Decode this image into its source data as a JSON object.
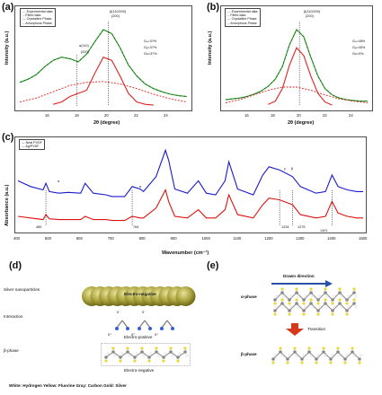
{
  "panels": {
    "a": {
      "label": "(a)",
      "ylabel": "Intensity (a.u.)",
      "xlabel": "2θ (degree)",
      "legend": [
        "Experimental data",
        "Fitted data",
        "Crystalline Phase",
        "Amorphous Phase"
      ],
      "peak_labels": [
        "β(110/200)",
        "α(110)",
        "(020)"
      ],
      "peak_top": "β(110/200)",
      "peak_sub": "(200)",
      "stats": [
        "Gₐ=3?%",
        "Gᵦ=3?%",
        "Gc=3?%"
      ],
      "xticks": [
        "16",
        "18",
        "20",
        "22",
        "24"
      ]
    },
    "b": {
      "label": "(b)",
      "ylabel": "Intensity (a.u.)",
      "xlabel": "2θ (degree)",
      "legend": [
        "Experimental data",
        "Fitted data",
        "Crystalline Phase",
        "Amorphous Phase"
      ],
      "peak_top": "β(110/200)",
      "peak_sub": "(200)",
      "stats": [
        "Gₐ=45%",
        "Gᵦ=45%",
        "Gc=0%"
      ],
      "xticks": [
        "16",
        "18",
        "20",
        "22",
        "24"
      ]
    },
    "c": {
      "label": "(c)",
      "ylabel": "Absorbance (a.u.)",
      "xlabel": "Wavenumber (cm⁻¹)",
      "legend": [
        "Neat PVDF",
        "Ag/PVDF"
      ],
      "xticks": [
        "400",
        "500",
        "600",
        "700",
        "800",
        "900",
        "1000",
        "1100",
        "1200",
        "1300",
        "1400",
        "1500"
      ],
      "annotations": [
        "α",
        "α",
        "γ",
        "β",
        "1401",
        "764",
        "1234",
        "1275",
        "489"
      ]
    },
    "d": {
      "label": "(d)",
      "row_labels": [
        "Silver nanoparticles",
        "Interaction",
        "β-phase"
      ],
      "np_label": "Electro-negative",
      "electro_positive": "Electro-positive",
      "electro_negative": "Electro-negative",
      "charges": [
        "δ⁻",
        "δ⁻",
        "δ⁺",
        "δ⁺",
        "δ⁺"
      ]
    },
    "e": {
      "label": "(e)",
      "drawn_direction": "Drawn direction",
      "alpha_phase": "α-phase",
      "transition": "Transition",
      "beta_phase": "β-phase"
    },
    "footer": "White: Hydrogen   Yellow: Fluorine   Gray: Carbon   Gold: Silver"
  },
  "chart_data": [
    {
      "type": "line",
      "panel": "a",
      "xlabel": "2θ (degree)",
      "ylabel": "Intensity (a.u.)",
      "xlim": [
        15,
        25
      ],
      "series": [
        {
          "name": "Experimental data",
          "color": "#22aa22",
          "x": [
            15.0,
            15.5,
            16.0,
            16.5,
            17.0,
            17.5,
            18.0,
            18.5,
            19.0,
            19.5,
            20.0,
            20.5,
            21.0,
            21.5,
            22.0,
            22.5,
            23.0,
            23.5,
            24.0,
            24.5,
            25.0
          ],
          "y": [
            0.3,
            0.34,
            0.4,
            0.5,
            0.58,
            0.62,
            0.6,
            0.56,
            0.66,
            0.82,
            0.97,
            0.92,
            0.74,
            0.52,
            0.38,
            0.28,
            0.22,
            0.18,
            0.15,
            0.13,
            0.12
          ]
        },
        {
          "name": "Fitted data",
          "color": "#226622",
          "x": [
            15.0,
            15.5,
            16.0,
            16.5,
            17.0,
            17.5,
            18.0,
            18.5,
            19.0,
            19.5,
            20.0,
            20.5,
            21.0,
            21.5,
            22.0,
            22.5,
            23.0,
            23.5,
            24.0,
            24.5,
            25.0
          ],
          "y": [
            0.3,
            0.34,
            0.4,
            0.5,
            0.58,
            0.62,
            0.6,
            0.56,
            0.66,
            0.82,
            0.97,
            0.92,
            0.74,
            0.52,
            0.38,
            0.28,
            0.22,
            0.18,
            0.15,
            0.13,
            0.12
          ]
        },
        {
          "name": "Crystalline Phase",
          "color": "#dd2222",
          "x": [
            17.0,
            17.5,
            18.0,
            18.5,
            19.0,
            19.5,
            20.0,
            20.5,
            21.0,
            21.5,
            22.0,
            22.5,
            23.0
          ],
          "y": [
            0.02,
            0.05,
            0.12,
            0.16,
            0.2,
            0.42,
            0.62,
            0.58,
            0.38,
            0.16,
            0.05,
            0.02,
            0.01
          ]
        },
        {
          "name": "Amorphous Phase",
          "color": "#dd2222",
          "x": [
            15.0,
            16.0,
            17.0,
            18.0,
            19.0,
            20.0,
            21.0,
            22.0,
            23.0,
            24.0,
            25.0
          ],
          "y": [
            0.05,
            0.1,
            0.18,
            0.26,
            0.3,
            0.31,
            0.28,
            0.22,
            0.15,
            0.09,
            0.05
          ]
        }
      ]
    },
    {
      "type": "line",
      "panel": "b",
      "xlabel": "2θ (degree)",
      "ylabel": "Intensity (a.u.)",
      "xlim": [
        15,
        25
      ],
      "series": [
        {
          "name": "Experimental data",
          "color": "#22aa22",
          "x": [
            15.0,
            15.5,
            16.0,
            16.5,
            17.0,
            17.5,
            18.0,
            18.5,
            19.0,
            19.5,
            20.0,
            20.5,
            21.0,
            21.5,
            22.0,
            22.5,
            23.0,
            23.5,
            24.0,
            24.5,
            25.0
          ],
          "y": [
            0.08,
            0.09,
            0.1,
            0.12,
            0.15,
            0.19,
            0.25,
            0.34,
            0.5,
            0.78,
            0.97,
            0.88,
            0.62,
            0.38,
            0.22,
            0.14,
            0.1,
            0.08,
            0.07,
            0.06,
            0.06
          ]
        },
        {
          "name": "Fitted data",
          "color": "#226622",
          "x": [
            15.0,
            15.5,
            16.0,
            16.5,
            17.0,
            17.5,
            18.0,
            18.5,
            19.0,
            19.5,
            20.0,
            20.5,
            21.0,
            21.5,
            22.0,
            22.5,
            23.0,
            23.5,
            24.0,
            24.5,
            25.0
          ],
          "y": [
            0.08,
            0.09,
            0.1,
            0.12,
            0.15,
            0.19,
            0.25,
            0.34,
            0.5,
            0.78,
            0.97,
            0.88,
            0.62,
            0.38,
            0.22,
            0.14,
            0.1,
            0.08,
            0.07,
            0.06,
            0.06
          ]
        },
        {
          "name": "Crystalline Phase",
          "color": "#dd2222",
          "x": [
            18.0,
            18.5,
            19.0,
            19.5,
            20.0,
            20.5,
            21.0,
            21.5,
            22.0,
            22.5
          ],
          "y": [
            0.02,
            0.06,
            0.22,
            0.52,
            0.74,
            0.64,
            0.38,
            0.16,
            0.05,
            0.01
          ]
        },
        {
          "name": "Amorphous Phase",
          "color": "#dd2222",
          "x": [
            15.0,
            16.0,
            17.0,
            18.0,
            19.0,
            20.0,
            21.0,
            22.0,
            23.0,
            24.0,
            25.0
          ],
          "y": [
            0.04,
            0.08,
            0.14,
            0.2,
            0.24,
            0.24,
            0.2,
            0.14,
            0.09,
            0.06,
            0.04
          ]
        }
      ]
    },
    {
      "type": "line",
      "panel": "c",
      "xlabel": "Wavenumber (cm⁻¹)",
      "ylabel": "Absorbance (a.u.)",
      "xlim": [
        400,
        1500
      ],
      "series": [
        {
          "name": "Neat PVDF",
          "color": "#1a1acc",
          "x": [
            400,
            440,
            480,
            489,
            500,
            530,
            560,
            600,
            614,
            640,
            680,
            700,
            740,
            764,
            790,
            800,
            840,
            870,
            880,
            900,
            940,
            975,
            1000,
            1030,
            1060,
            1072,
            1100,
            1150,
            1180,
            1200,
            1234,
            1275,
            1300,
            1350,
            1380,
            1401,
            1420,
            1450,
            1480,
            1500
          ],
          "y": [
            0.55,
            0.48,
            0.44,
            0.52,
            0.42,
            0.4,
            0.41,
            0.4,
            0.52,
            0.4,
            0.38,
            0.36,
            0.36,
            0.48,
            0.45,
            0.42,
            0.6,
            0.92,
            0.8,
            0.45,
            0.4,
            0.55,
            0.4,
            0.38,
            0.55,
            0.78,
            0.45,
            0.38,
            0.62,
            0.72,
            0.68,
            0.6,
            0.48,
            0.4,
            0.42,
            0.62,
            0.48,
            0.44,
            0.42,
            0.42
          ]
        },
        {
          "name": "Ag/PVDF",
          "color": "#dd1111",
          "x": [
            400,
            440,
            480,
            489,
            500,
            530,
            560,
            600,
            614,
            640,
            680,
            700,
            740,
            764,
            790,
            800,
            840,
            870,
            880,
            900,
            940,
            975,
            1000,
            1030,
            1060,
            1072,
            1100,
            1150,
            1180,
            1200,
            1234,
            1275,
            1300,
            1350,
            1380,
            1401,
            1420,
            1450,
            1480,
            1500
          ],
          "y": [
            0.12,
            0.1,
            0.08,
            0.14,
            0.09,
            0.08,
            0.08,
            0.08,
            0.12,
            0.08,
            0.08,
            0.07,
            0.07,
            0.12,
            0.1,
            0.1,
            0.22,
            0.44,
            0.3,
            0.12,
            0.1,
            0.2,
            0.1,
            0.1,
            0.2,
            0.38,
            0.14,
            0.1,
            0.26,
            0.34,
            0.32,
            0.26,
            0.14,
            0.1,
            0.12,
            0.3,
            0.16,
            0.12,
            0.1,
            0.1
          ]
        }
      ]
    }
  ]
}
